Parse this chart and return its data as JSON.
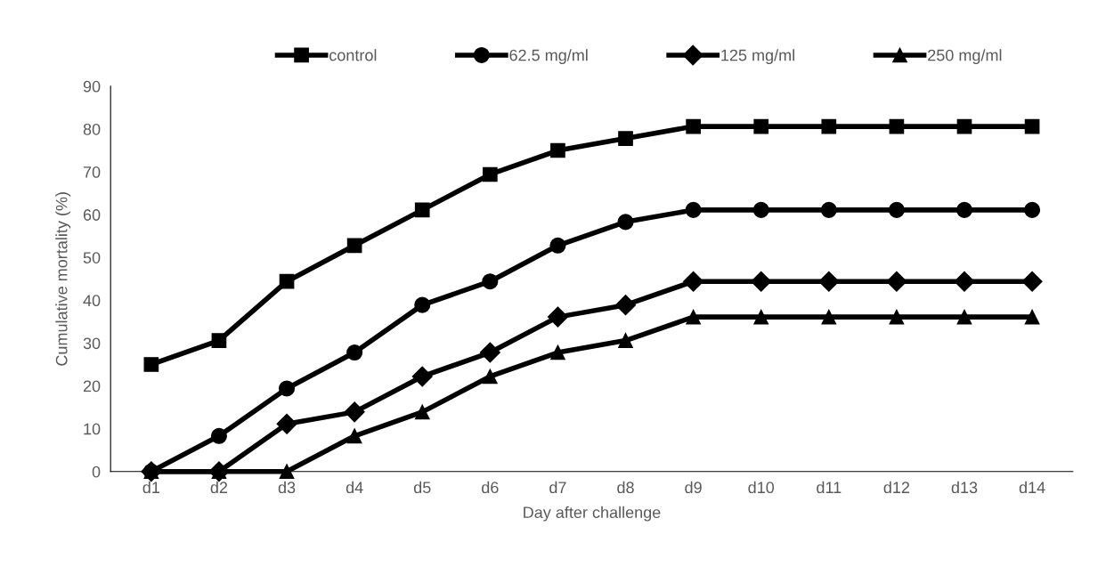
{
  "chart_data": {
    "type": "line",
    "xlabel": "Day after challenge",
    "ylabel": "Cumulative mortality (%)",
    "categories": [
      "d1",
      "d2",
      "d3",
      "d4",
      "d5",
      "d6",
      "d7",
      "d8",
      "d9",
      "d10",
      "d11",
      "d12",
      "d13",
      "d14"
    ],
    "ylim": [
      0,
      90
    ],
    "yticks": [
      0,
      10,
      20,
      30,
      40,
      50,
      60,
      70,
      80,
      90
    ],
    "grid": false,
    "legend": "top",
    "series": [
      {
        "name": "control",
        "color": "#000000",
        "marker": "square",
        "values": [
          25,
          30.6,
          44.4,
          52.8,
          61.1,
          69.4,
          75,
          77.8,
          80.6,
          80.6,
          80.6,
          80.6,
          80.6,
          80.6
        ]
      },
      {
        "name": "62.5 mg/ml",
        "color": "#000000",
        "marker": "circle",
        "values": [
          0,
          8.3,
          19.4,
          27.8,
          38.9,
          44.4,
          52.8,
          58.3,
          61.1,
          61.1,
          61.1,
          61.1,
          61.1,
          61.1
        ]
      },
      {
        "name": "125 mg/ml",
        "color": "#000000",
        "marker": "diamond",
        "values": [
          0,
          0,
          11.1,
          13.9,
          22.2,
          27.8,
          36.1,
          38.9,
          44.4,
          44.4,
          44.4,
          44.4,
          44.4,
          44.4
        ]
      },
      {
        "name": "250 mg/ml",
        "color": "#000000",
        "marker": "triangle",
        "values": [
          0,
          0,
          0,
          8.3,
          13.9,
          22.2,
          27.8,
          30.6,
          36.1,
          36.1,
          36.1,
          36.1,
          36.1,
          36.1
        ]
      }
    ]
  }
}
